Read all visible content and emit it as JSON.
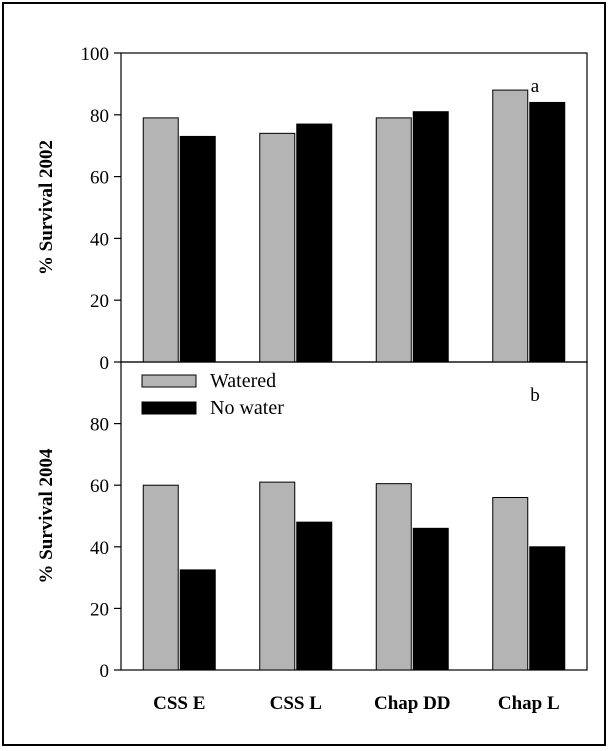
{
  "colors": {
    "watered": "#b4b4b4",
    "no_water": "#000000",
    "axis": "#000000"
  },
  "chart_data": [
    {
      "type": "bar",
      "panel_label": "a",
      "ylabel": "% Survival 2002",
      "ylim": [
        0,
        100
      ],
      "yticks": [
        0,
        20,
        40,
        60,
        80,
        100
      ],
      "categories": [
        "CSS E",
        "CSS L",
        "Chap DD",
        "Chap L"
      ],
      "show_category_labels": false,
      "series": [
        {
          "name": "Watered",
          "values": [
            79,
            74,
            79,
            88
          ]
        },
        {
          "name": "No water",
          "values": [
            73,
            77,
            81,
            84
          ]
        }
      ]
    },
    {
      "type": "bar",
      "panel_label": "b",
      "ylabel": "% Survival 2004",
      "ylim": [
        0,
        100
      ],
      "yticks": [
        0,
        20,
        40,
        60,
        80
      ],
      "categories": [
        "CSS E",
        "CSS L",
        "Chap DD",
        "Chap L"
      ],
      "show_category_labels": true,
      "legend": {
        "position": "top-left",
        "entries": [
          "Watered",
          "No water"
        ]
      },
      "series": [
        {
          "name": "Watered",
          "values": [
            60,
            61,
            60.5,
            56
          ]
        },
        {
          "name": "No water",
          "values": [
            32.5,
            48,
            46,
            40
          ]
        }
      ]
    }
  ]
}
